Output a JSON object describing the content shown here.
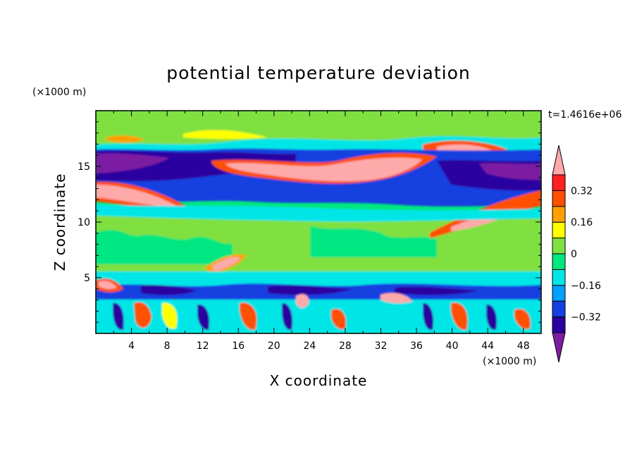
{
  "chart_data": {
    "type": "heatmap",
    "title": "potential temperature deviation",
    "xlabel": "X coordinate",
    "ylabel": "Z coordinate",
    "x_units": "(×1000 m)",
    "y_units": "(×1000 m)",
    "time_label": "t=1.4616e+06",
    "xlim": [
      0,
      50
    ],
    "ylim": [
      0,
      20
    ],
    "x_ticks": [
      4,
      8,
      12,
      16,
      20,
      24,
      28,
      32,
      36,
      40,
      44,
      48
    ],
    "y_ticks": [
      5,
      10,
      15
    ],
    "colorbar": {
      "levels": [
        -0.4,
        -0.32,
        -0.24,
        -0.16,
        -0.08,
        0,
        0.08,
        0.16,
        0.24,
        0.32,
        0.4
      ],
      "labels": [
        "0.32",
        "0.16",
        "0",
        "-0.16",
        "-0.32"
      ],
      "colors": [
        "#7b1fa2",
        "#2a00a0",
        "#1540e0",
        "#00a0ff",
        "#00e6e6",
        "#00e680",
        "#80e040",
        "#ffff00",
        "#ffa000",
        "#ff5000",
        "#ff2020",
        "#ffaaaa"
      ],
      "extend": "both"
    }
  }
}
